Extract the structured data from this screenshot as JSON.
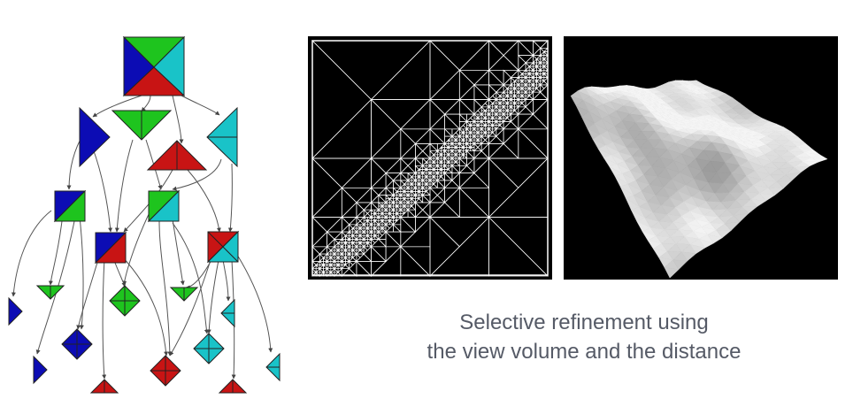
{
  "caption": {
    "line1": "Selective refinement using",
    "line2": "the view volume and the distance"
  },
  "colors": {
    "green": "#1ec41e",
    "blue": "#0c0cb4",
    "red": "#c81414",
    "cyan": "#19c3c8",
    "arrow": "#555555",
    "wire": "#ffffff",
    "terrain_light": "#f2f2f2",
    "terrain_dark": "#5a5a5a"
  },
  "figures": {
    "left": "triangle-bintree-dag",
    "middle": "adaptive-triangulation-wireframe",
    "right": "refined-terrain-mesh"
  }
}
